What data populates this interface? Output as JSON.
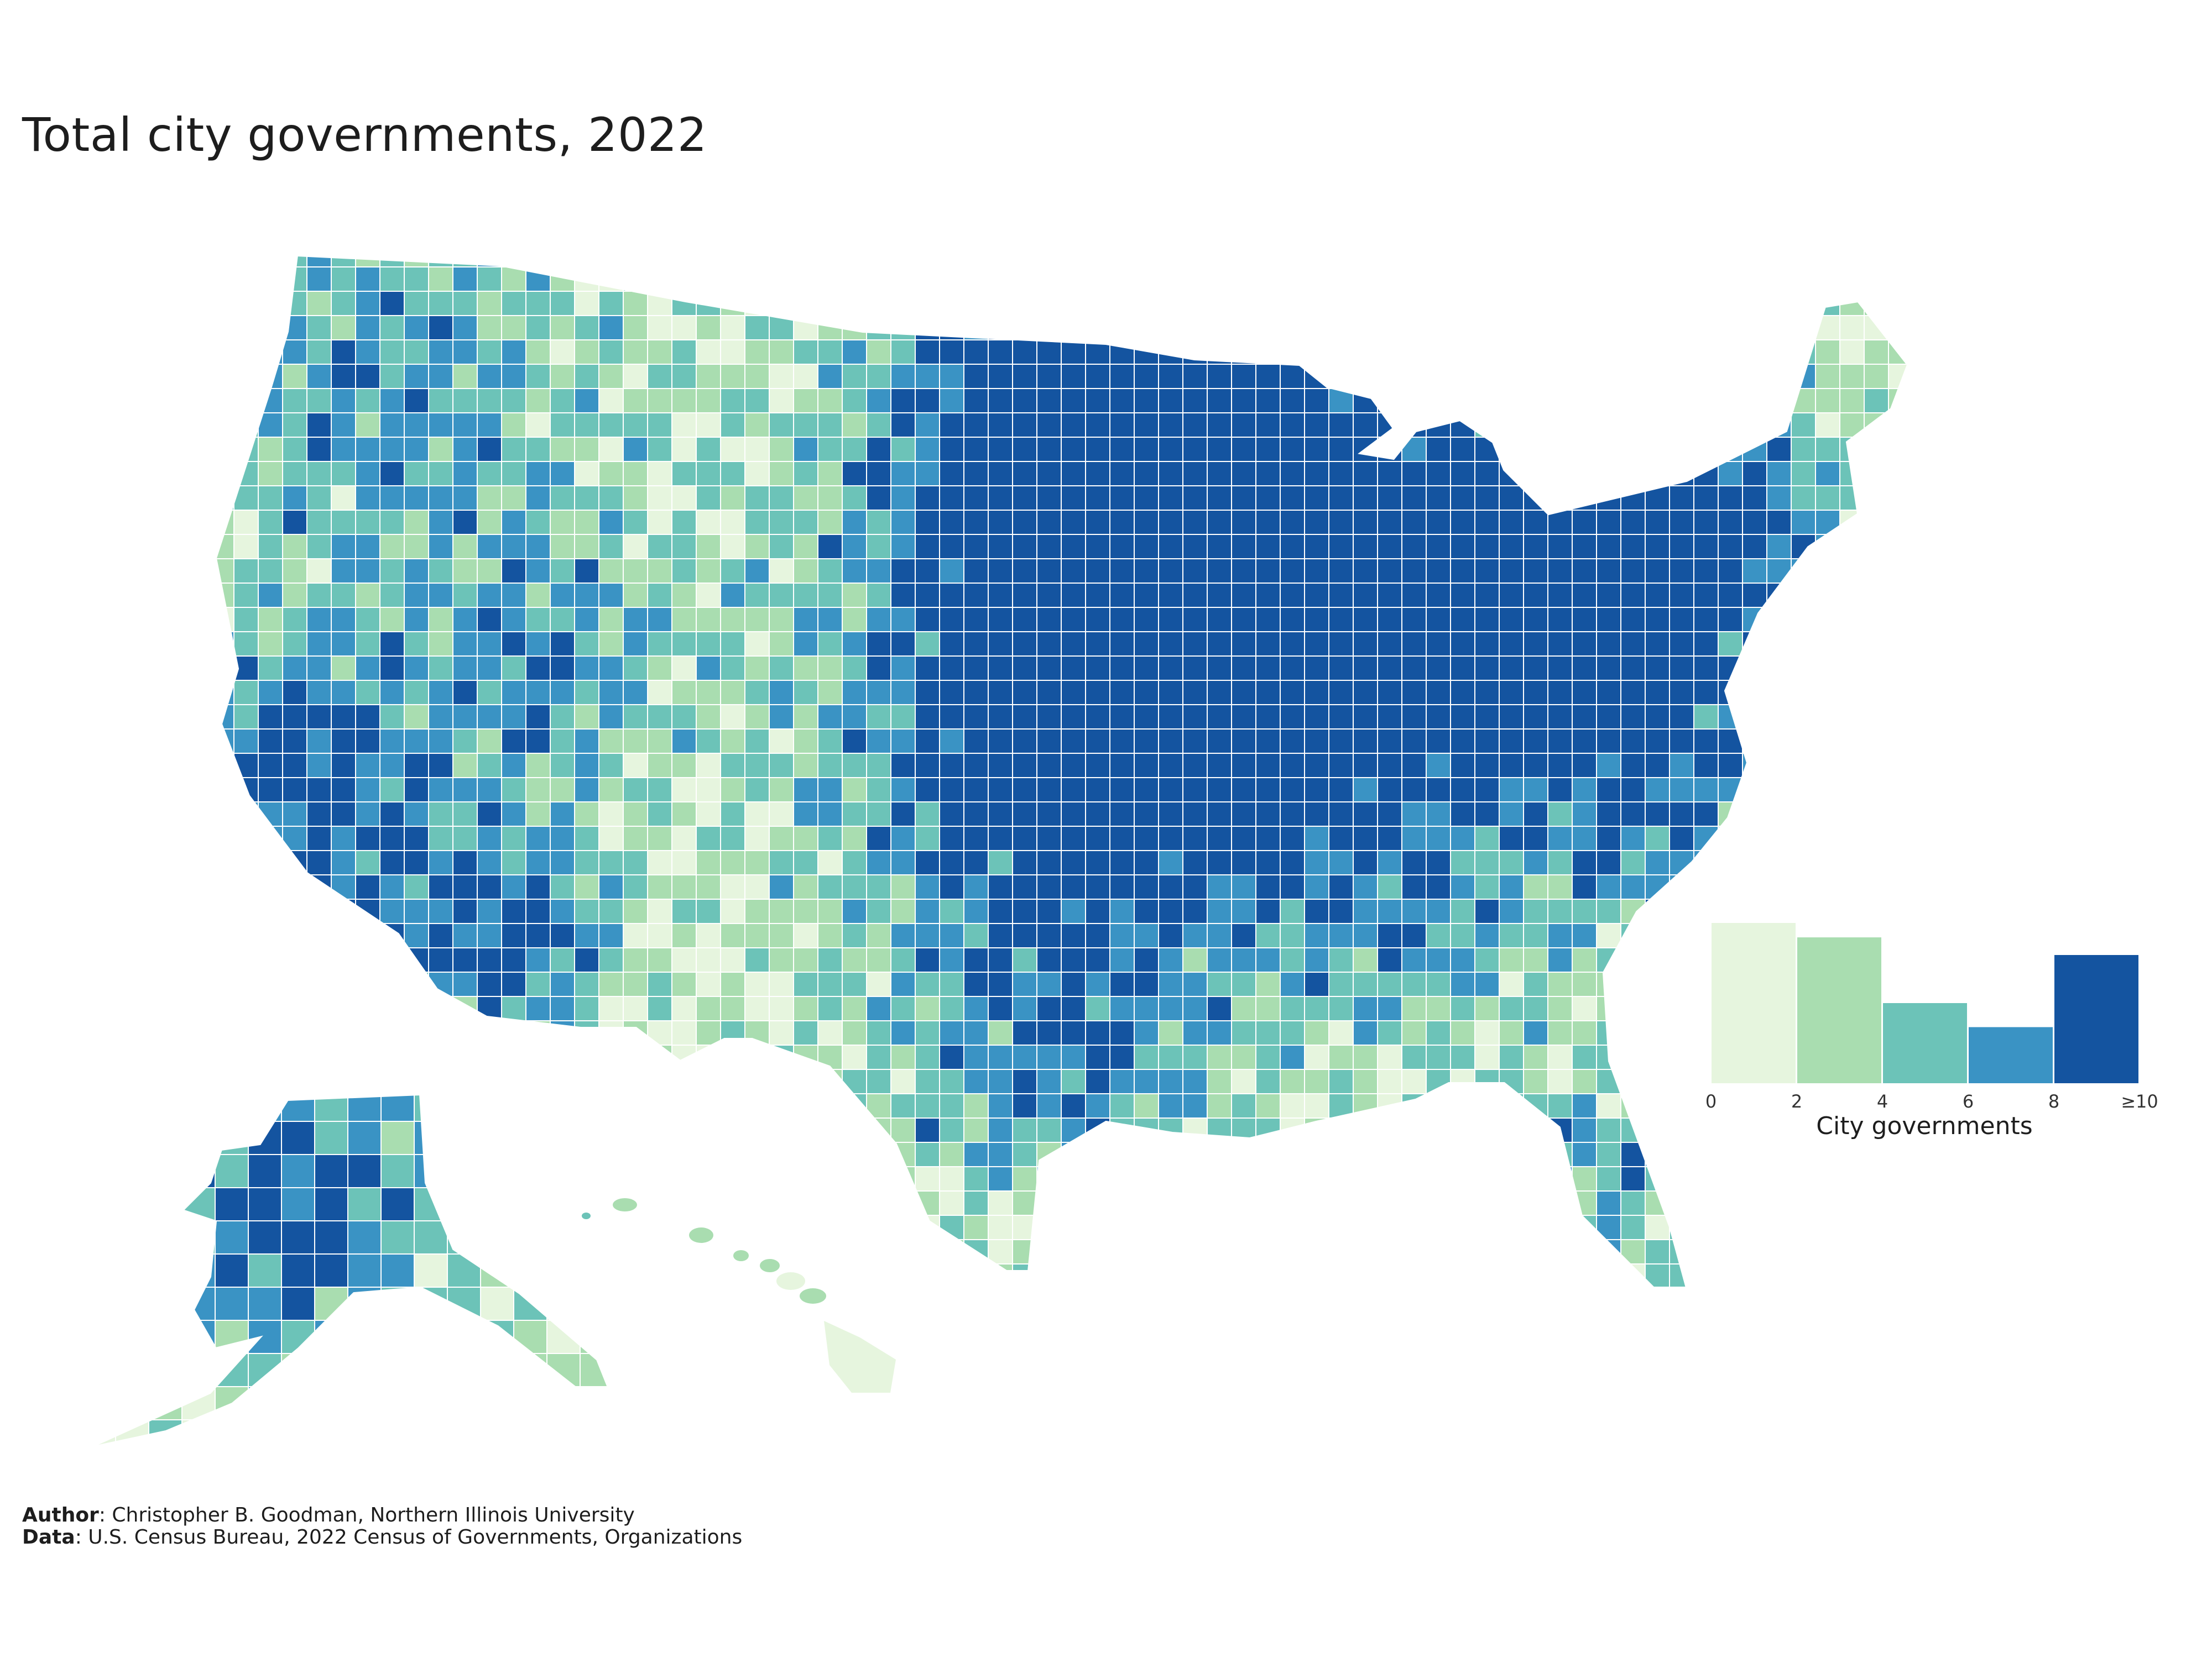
{
  "title": "Total city governments, 2022",
  "map": {
    "regions": [
      "contiguous-us",
      "alaska",
      "hawaii"
    ],
    "color_scale": [
      "#e6f5de",
      "#a9ddb0",
      "#6cc3b8",
      "#3a93c4",
      "#1454a0"
    ],
    "bins": [
      {
        "from": 0,
        "to": 2,
        "color": "#e6f5de",
        "relative_share": 1.0
      },
      {
        "from": 2,
        "to": 4,
        "color": "#a9ddb0",
        "relative_share": 0.91
      },
      {
        "from": 4,
        "to": 6,
        "color": "#6cc3b8",
        "relative_share": 0.5
      },
      {
        "from": 6,
        "to": 8,
        "color": "#3a93c4",
        "relative_share": 0.35
      },
      {
        "from": 8,
        "to": 10,
        "color": "#1454a0",
        "relative_share": 0.8
      }
    ]
  },
  "legend": {
    "title": "City governments",
    "ticks": [
      "0",
      "2",
      "4",
      "6",
      "8",
      "≥10"
    ]
  },
  "credits": {
    "author_label": "Author",
    "author_text": ": Christopher B. Goodman, Northern Illinois University",
    "data_label": "Data",
    "data_text": ": U.S. Census Bureau, 2022 Census of Governments, Organizations"
  }
}
